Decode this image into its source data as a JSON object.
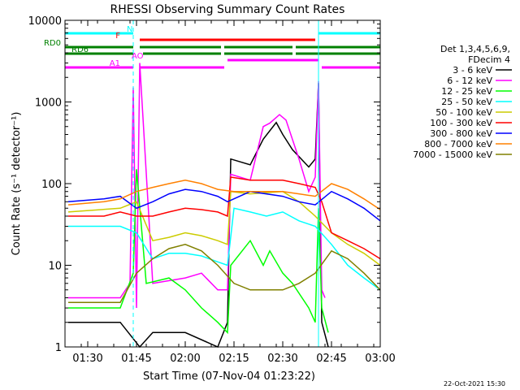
{
  "chart_data": {
    "type": "line",
    "title": "RHESSI Observing Summary Count Rates",
    "xlabel": "Start Time (07-Nov-04 01:23:22)",
    "ylabel": "Count Rate (s⁻¹ detector⁻¹)",
    "y_scale": "log",
    "xlim": [
      "01:23",
      "03:00"
    ],
    "ylim": [
      1,
      10000
    ],
    "x_ticks": [
      "01:30",
      "01:45",
      "02:00",
      "02:15",
      "02:30",
      "02:45",
      "03:00"
    ],
    "y_ticks": [
      "1",
      "10",
      "100",
      "1000",
      "10000"
    ],
    "legend_header": [
      "Det 1,3,4,5,6,9,",
      "FDecim 4"
    ],
    "legend_position": "right",
    "footer_date": "22-Oct-2021 15:30",
    "series": [
      {
        "name": "3 - 6 keV",
        "color": "#000000",
        "x": [
          "01:24",
          "01:40",
          "01:46",
          "01:50",
          "02:00",
          "02:10",
          "02:13",
          "02:14",
          "02:20",
          "02:24",
          "02:28",
          "02:30",
          "02:33",
          "02:38",
          "02:40",
          "02:41",
          "02:42",
          "02:44"
        ],
        "y": [
          2,
          2,
          1,
          1.5,
          1.5,
          1,
          2,
          200,
          170,
          350,
          560,
          400,
          260,
          160,
          200,
          1700,
          2,
          1
        ]
      },
      {
        "name": "6 - 12 keV",
        "color": "#ff00ff",
        "x": [
          "01:24",
          "01:40",
          "01:43",
          "01:44",
          "01:45",
          "01:46",
          "01:50",
          "02:00",
          "02:05",
          "02:10",
          "02:13",
          "02:14",
          "02:20",
          "02:24",
          "02:26",
          "02:29",
          "02:31",
          "02:35",
          "02:38",
          "02:40",
          "02:41",
          "02:42",
          "02:43"
        ],
        "y": [
          4,
          4,
          6,
          1500,
          3,
          3000,
          6,
          7,
          8,
          5,
          5,
          130,
          110,
          500,
          550,
          700,
          600,
          200,
          80,
          120,
          1800,
          5,
          4
        ]
      },
      {
        "name": "12 - 25 keV",
        "color": "#00ff00",
        "x": [
          "01:24",
          "01:40",
          "01:44",
          "01:45",
          "01:48",
          "01:55",
          "02:00",
          "02:05",
          "02:10",
          "02:13",
          "02:14",
          "02:20",
          "02:24",
          "02:26",
          "02:30",
          "02:33",
          "02:38",
          "02:40",
          "02:41",
          "02:42",
          "02:44"
        ],
        "y": [
          3,
          3,
          8,
          150,
          6,
          7,
          5,
          3,
          2,
          1.5,
          10,
          20,
          10,
          15,
          8,
          6,
          3,
          2,
          50,
          3,
          1.5
        ]
      },
      {
        "name": "25 - 50 keV",
        "color": "#00ffff",
        "x": [
          "01:24",
          "01:35",
          "01:40",
          "01:45",
          "01:50",
          "01:55",
          "02:00",
          "02:05",
          "02:10",
          "02:13",
          "02:15",
          "02:20",
          "02:25",
          "02:30",
          "02:35",
          "02:40",
          "02:45",
          "02:50",
          "02:55",
          "03:00"
        ],
        "y": [
          30,
          30,
          30,
          25,
          12,
          14,
          14,
          13,
          11,
          10,
          50,
          45,
          40,
          45,
          35,
          30,
          18,
          10,
          7,
          5
        ]
      },
      {
        "name": "50 - 100 keV",
        "color": "#cccc00",
        "x": [
          "01:24",
          "01:40",
          "01:45",
          "01:50",
          "01:55",
          "02:00",
          "02:05",
          "02:10",
          "02:13",
          "02:14",
          "02:20",
          "02:30",
          "02:35",
          "02:40",
          "02:45",
          "02:50",
          "02:55",
          "03:00"
        ],
        "y": [
          45,
          50,
          60,
          20,
          22,
          25,
          23,
          20,
          18,
          80,
          75,
          80,
          60,
          40,
          25,
          18,
          14,
          10
        ]
      },
      {
        "name": "100 - 300 keV",
        "color": "#ff0000",
        "x": [
          "01:24",
          "01:35",
          "01:40",
          "01:45",
          "01:50",
          "01:55",
          "02:00",
          "02:05",
          "02:10",
          "02:13",
          "02:14",
          "02:20",
          "02:30",
          "02:35",
          "02:40",
          "02:42",
          "02:45",
          "02:50",
          "02:55",
          "03:00"
        ],
        "y": [
          40,
          40,
          45,
          40,
          40,
          45,
          50,
          48,
          45,
          40,
          120,
          110,
          110,
          100,
          90,
          60,
          25,
          20,
          16,
          12
        ]
      },
      {
        "name": "300 - 800 keV",
        "color": "#0000ff",
        "x": [
          "01:24",
          "01:35",
          "01:40",
          "01:45",
          "01:50",
          "01:55",
          "02:00",
          "02:05",
          "02:10",
          "02:13",
          "02:20",
          "02:30",
          "02:35",
          "02:40",
          "02:45",
          "02:50",
          "02:55",
          "03:00"
        ],
        "y": [
          60,
          65,
          70,
          50,
          60,
          75,
          85,
          80,
          70,
          60,
          80,
          70,
          60,
          55,
          80,
          65,
          50,
          35
        ]
      },
      {
        "name": "800 - 7000 keV",
        "color": "#ff8000",
        "x": [
          "01:24",
          "01:35",
          "01:40",
          "01:45",
          "01:50",
          "01:55",
          "02:00",
          "02:05",
          "02:10",
          "02:15",
          "02:20",
          "02:30",
          "02:35",
          "02:40",
          "02:45",
          "02:50",
          "02:55",
          "03:00"
        ],
        "y": [
          55,
          60,
          65,
          80,
          90,
          100,
          110,
          100,
          85,
          80,
          80,
          80,
          75,
          70,
          100,
          85,
          65,
          48
        ]
      },
      {
        "name": "7000 - 15000 keV",
        "color": "#808000",
        "x": [
          "01:24",
          "01:40",
          "01:45",
          "01:50",
          "01:55",
          "02:00",
          "02:05",
          "02:10",
          "02:15",
          "02:20",
          "02:25",
          "02:30",
          "02:35",
          "02:40",
          "02:45",
          "02:50",
          "02:55",
          "03:00"
        ],
        "y": [
          3.5,
          3.5,
          8,
          12,
          16,
          18,
          15,
          10,
          6,
          5,
          5,
          5,
          6,
          8,
          15,
          12,
          8,
          5
        ]
      }
    ],
    "flag_bars": [
      {
        "label": "N",
        "color": "#00ffff",
        "segments": [
          [
            "01:23",
            "01:44"
          ],
          [
            "02:41",
            "03:00"
          ]
        ]
      },
      {
        "label": "F",
        "color": "#ff0000",
        "segments": [
          [
            "01:46",
            "02:40"
          ]
        ]
      },
      {
        "label": "RD0",
        "color": "#008000",
        "segments": [
          [
            "01:23",
            "01:44"
          ],
          [
            "01:46",
            "02:11"
          ],
          [
            "02:12",
            "02:33"
          ],
          [
            "02:34",
            "03:00"
          ]
        ]
      },
      {
        "label": "RD6",
        "color": "#008000",
        "segments": [
          [
            "01:23",
            "01:44"
          ],
          [
            "01:47",
            "02:11"
          ],
          [
            "02:12",
            "02:33"
          ],
          [
            "02:34",
            "03:00"
          ]
        ]
      },
      {
        "label": "AO",
        "color": "#ff00ff",
        "segments": [
          [
            "02:13",
            "02:41"
          ]
        ]
      },
      {
        "label": "A1",
        "color": "#ff00ff",
        "segments": [
          [
            "01:23",
            "01:44"
          ],
          [
            "01:46",
            "02:12"
          ],
          [
            "02:42",
            "03:00"
          ]
        ]
      }
    ],
    "v_markers": [
      {
        "time": "01:44",
        "color": "#00ffff",
        "style": "dashed"
      },
      {
        "time": "02:41",
        "color": "#00ffff",
        "style": "solid"
      },
      {
        "time": "03:00",
        "color": "#00ffff",
        "style": "dashed"
      }
    ]
  }
}
